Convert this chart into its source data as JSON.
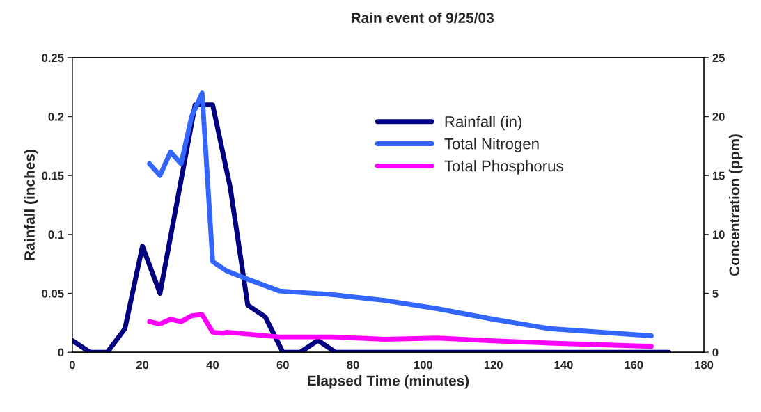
{
  "chart_data": {
    "type": "line",
    "title": "Rain event of 9/25/03",
    "xlabel": "Elapsed Time (minutes)",
    "ylabel": "Rainfall (inches)",
    "y2label": "Concentration (ppm)",
    "xlim": [
      0,
      180
    ],
    "xticks": [
      0,
      20,
      40,
      60,
      80,
      100,
      120,
      140,
      160,
      180
    ],
    "ylim": [
      0,
      0.25
    ],
    "yticks": [
      0,
      0.05,
      0.1,
      0.15,
      0.2,
      0.25
    ],
    "y2lim": [
      0,
      25
    ],
    "y2ticks": [
      0,
      5,
      10,
      15,
      20,
      25
    ],
    "grid": false,
    "legend": "top right",
    "marker": "none",
    "line_style": "solid",
    "series": [
      {
        "name": "Rainfall (in)",
        "color": "#000080",
        "x": [
          0,
          5,
          10,
          15,
          20,
          25,
          30,
          35,
          40,
          45,
          50,
          55,
          60,
          65,
          70,
          75,
          80,
          85,
          90,
          95,
          100,
          105,
          110,
          115,
          120,
          125,
          130,
          135,
          140,
          145,
          150,
          155,
          160,
          165,
          170
        ],
        "values": [
          0.01,
          0,
          0,
          0.02,
          0.09,
          0.05,
          0.13,
          0.21,
          0.21,
          0.14,
          0.04,
          0.03,
          0,
          0,
          0.01,
          0,
          0,
          0,
          0,
          0,
          0,
          0,
          0,
          0,
          0,
          0,
          0,
          0,
          0,
          0,
          0,
          0,
          0,
          0,
          0
        ]
      },
      {
        "name": "Total Nitrogen",
        "color": "#3366ff",
        "axis": "y2",
        "x": [
          22,
          25,
          28,
          31,
          34,
          37,
          40,
          44,
          50,
          59,
          74,
          89,
          104,
          120,
          136,
          165
        ],
        "values": [
          16,
          15,
          17,
          16,
          20,
          22,
          7.7,
          6.9,
          6.2,
          5.2,
          4.9,
          4.4,
          3.7,
          2.8,
          2.0,
          1.4
        ]
      },
      {
        "name": "Total Phosphorus",
        "color": "#ff00ff",
        "axis": "y2",
        "x": [
          22,
          25,
          28,
          31,
          34,
          37,
          40,
          43,
          44,
          59,
          74,
          89,
          104,
          120,
          136,
          165
        ],
        "values": [
          2.6,
          2.4,
          2.8,
          2.6,
          3.1,
          3.2,
          1.7,
          1.6,
          1.7,
          1.3,
          1.3,
          1.1,
          1.2,
          0.97,
          0.78,
          0.5
        ]
      }
    ]
  }
}
